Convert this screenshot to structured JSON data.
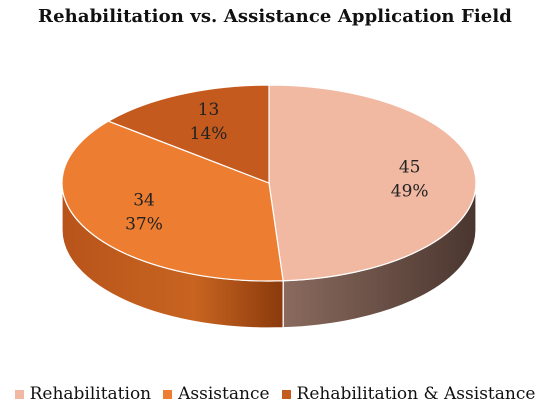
{
  "chart_data": {
    "type": "pie",
    "title": "Rehabilitation vs. Assistance Application Field",
    "categories": [
      "Rehabilitation",
      "Assistance",
      "Rehabilitation & Assistance"
    ],
    "values": [
      45,
      34,
      13
    ],
    "percent_labels": [
      "49%",
      "37%",
      "14%"
    ],
    "colors": [
      "#f2b9a2",
      "#ed7d31",
      "#c55a1f"
    ],
    "legend_position": "bottom"
  }
}
